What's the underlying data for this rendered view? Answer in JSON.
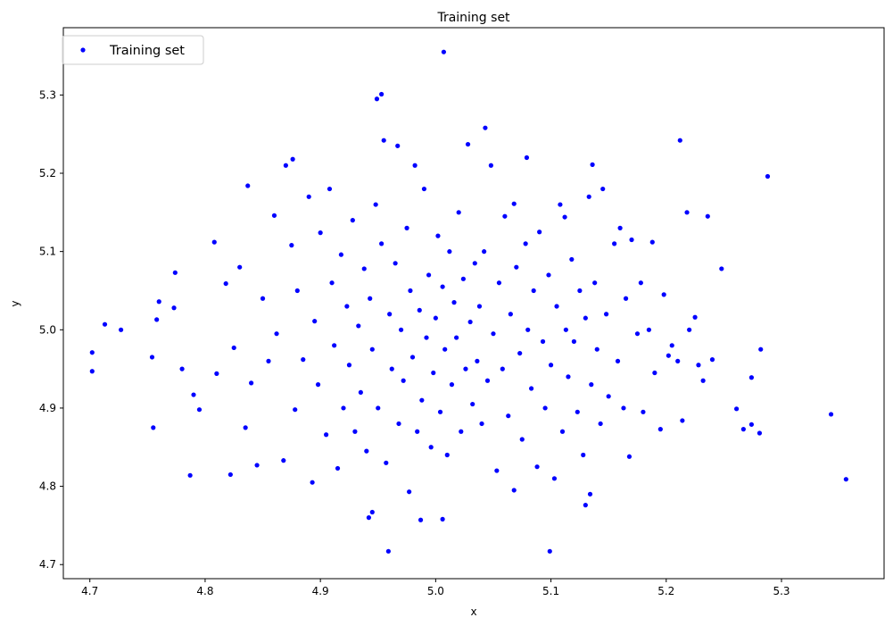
{
  "chart_data": {
    "type": "scatter",
    "title": "Training set",
    "xlabel": "x",
    "ylabel": "y",
    "xlim": [
      4.677,
      5.389
    ],
    "ylim": [
      4.682,
      5.386
    ],
    "xticks": [
      "4.7",
      "4.8",
      "4.9",
      "5.0",
      "5.1",
      "5.2",
      "5.3"
    ],
    "yticks": [
      "4.7",
      "4.8",
      "4.9",
      "5.0",
      "5.1",
      "5.2",
      "5.3"
    ],
    "grid": false,
    "legend": {
      "placement": "top-left",
      "entries": [
        "Training set"
      ]
    },
    "series": [
      {
        "name": "Training set",
        "color": "#0000ff",
        "points": [
          [
            4.702,
            4.971
          ],
          [
            4.702,
            4.947
          ],
          [
            4.713,
            5.007
          ],
          [
            4.727,
            5.0
          ],
          [
            4.754,
            4.965
          ],
          [
            4.755,
            4.875
          ],
          [
            4.758,
            5.013
          ],
          [
            4.76,
            5.036
          ],
          [
            4.774,
            5.073
          ],
          [
            4.773,
            5.028
          ],
          [
            4.787,
            4.814
          ],
          [
            4.822,
            4.815
          ],
          [
            4.808,
            5.112
          ],
          [
            4.837,
            5.184
          ],
          [
            4.876,
            5.218
          ],
          [
            4.949,
            5.295
          ],
          [
            4.953,
            5.301
          ],
          [
            5.007,
            5.355
          ],
          [
            5.043,
            5.258
          ],
          [
            4.959,
            4.717
          ],
          [
            4.945,
            4.767
          ],
          [
            4.942,
            4.76
          ],
          [
            4.987,
            4.757
          ],
          [
            5.006,
            4.758
          ],
          [
            5.099,
            4.717
          ],
          [
            5.13,
            4.776
          ],
          [
            5.134,
            4.79
          ],
          [
            5.356,
            4.809
          ],
          [
            5.343,
            4.892
          ],
          [
            5.288,
            5.196
          ],
          [
            5.212,
            5.242
          ],
          [
            5.248,
            5.078
          ],
          [
            5.261,
            4.899
          ],
          [
            5.282,
            4.975
          ],
          [
            5.281,
            4.868
          ],
          [
            5.267,
            4.873
          ],
          [
            5.274,
            4.879
          ],
          [
            5.274,
            4.939
          ],
          [
            5.236,
            5.145
          ],
          [
            5.218,
            5.15
          ],
          [
            5.225,
            5.016
          ],
          [
            5.202,
            4.967
          ],
          [
            5.214,
            4.884
          ],
          [
            5.068,
            5.161
          ],
          [
            5.079,
            5.22
          ],
          [
            5.136,
            5.211
          ],
          [
            5.112,
            5.144
          ],
          [
            4.78,
            4.95
          ],
          [
            4.79,
            4.917
          ],
          [
            4.795,
            4.898
          ],
          [
            4.81,
            4.944
          ],
          [
            4.818,
            5.059
          ],
          [
            4.825,
            4.977
          ],
          [
            4.83,
            5.08
          ],
          [
            4.835,
            4.875
          ],
          [
            4.84,
            4.932
          ],
          [
            4.845,
            4.827
          ],
          [
            4.85,
            5.04
          ],
          [
            4.855,
            4.96
          ],
          [
            4.86,
            5.146
          ],
          [
            4.862,
            4.995
          ],
          [
            4.868,
            4.833
          ],
          [
            4.87,
            5.21
          ],
          [
            4.875,
            5.108
          ],
          [
            4.878,
            4.898
          ],
          [
            4.88,
            5.05
          ],
          [
            4.885,
            4.962
          ],
          [
            4.89,
            5.17
          ],
          [
            4.893,
            4.805
          ],
          [
            4.895,
            5.011
          ],
          [
            4.898,
            4.93
          ],
          [
            4.9,
            5.124
          ],
          [
            4.905,
            4.866
          ],
          [
            4.908,
            5.18
          ],
          [
            4.91,
            5.06
          ],
          [
            4.912,
            4.98
          ],
          [
            4.915,
            4.823
          ],
          [
            4.918,
            5.096
          ],
          [
            4.92,
            4.9
          ],
          [
            4.923,
            5.03
          ],
          [
            4.925,
            4.955
          ],
          [
            4.928,
            5.14
          ],
          [
            4.93,
            4.87
          ],
          [
            4.933,
            5.005
          ],
          [
            4.935,
            4.92
          ],
          [
            4.938,
            5.078
          ],
          [
            4.94,
            4.845
          ],
          [
            4.943,
            5.04
          ],
          [
            4.945,
            4.975
          ],
          [
            4.948,
            5.16
          ],
          [
            4.95,
            4.9
          ],
          [
            4.953,
            5.11
          ],
          [
            4.955,
            5.242
          ],
          [
            4.957,
            4.83
          ],
          [
            4.96,
            5.02
          ],
          [
            4.962,
            4.95
          ],
          [
            4.965,
            5.085
          ],
          [
            4.967,
            5.235
          ],
          [
            4.968,
            4.88
          ],
          [
            4.97,
            5.0
          ],
          [
            4.972,
            4.935
          ],
          [
            4.975,
            5.13
          ],
          [
            4.977,
            4.793
          ],
          [
            4.978,
            5.05
          ],
          [
            4.98,
            4.965
          ],
          [
            4.982,
            5.21
          ],
          [
            4.984,
            4.87
          ],
          [
            4.986,
            5.025
          ],
          [
            4.988,
            4.91
          ],
          [
            4.99,
            5.18
          ],
          [
            4.992,
            4.99
          ],
          [
            4.994,
            5.07
          ],
          [
            4.996,
            4.85
          ],
          [
            4.998,
            4.945
          ],
          [
            5.0,
            5.015
          ],
          [
            5.002,
            5.12
          ],
          [
            5.004,
            4.895
          ],
          [
            5.006,
            5.055
          ],
          [
            5.008,
            4.975
          ],
          [
            5.01,
            4.84
          ],
          [
            5.012,
            5.1
          ],
          [
            5.014,
            4.93
          ],
          [
            5.016,
            5.035
          ],
          [
            5.018,
            4.99
          ],
          [
            5.02,
            5.15
          ],
          [
            5.022,
            4.87
          ],
          [
            5.024,
            5.065
          ],
          [
            5.026,
            4.95
          ],
          [
            5.028,
            5.237
          ],
          [
            5.03,
            5.01
          ],
          [
            5.032,
            4.905
          ],
          [
            5.034,
            5.085
          ],
          [
            5.036,
            4.96
          ],
          [
            5.038,
            5.03
          ],
          [
            5.04,
            4.88
          ],
          [
            5.042,
            5.1
          ],
          [
            5.045,
            4.935
          ],
          [
            5.048,
            5.21
          ],
          [
            5.05,
            4.995
          ],
          [
            5.053,
            4.82
          ],
          [
            5.055,
            5.06
          ],
          [
            5.058,
            4.95
          ],
          [
            5.06,
            5.145
          ],
          [
            5.063,
            4.89
          ],
          [
            5.065,
            5.02
          ],
          [
            5.068,
            4.795
          ],
          [
            5.07,
            5.08
          ],
          [
            5.073,
            4.97
          ],
          [
            5.075,
            4.86
          ],
          [
            5.078,
            5.11
          ],
          [
            5.08,
            5.0
          ],
          [
            5.083,
            4.925
          ],
          [
            5.085,
            5.05
          ],
          [
            5.088,
            4.825
          ],
          [
            5.09,
            5.125
          ],
          [
            5.093,
            4.985
          ],
          [
            5.095,
            4.9
          ],
          [
            5.098,
            5.07
          ],
          [
            5.1,
            4.955
          ],
          [
            5.103,
            4.81
          ],
          [
            5.105,
            5.03
          ],
          [
            5.108,
            5.16
          ],
          [
            5.11,
            4.87
          ],
          [
            5.113,
            5.0
          ],
          [
            5.115,
            4.94
          ],
          [
            5.118,
            5.09
          ],
          [
            5.12,
            4.985
          ],
          [
            5.123,
            4.895
          ],
          [
            5.125,
            5.05
          ],
          [
            5.128,
            4.84
          ],
          [
            5.13,
            5.015
          ],
          [
            5.133,
            5.17
          ],
          [
            5.135,
            4.93
          ],
          [
            5.138,
            5.06
          ],
          [
            5.14,
            4.975
          ],
          [
            5.143,
            4.88
          ],
          [
            5.145,
            5.18
          ],
          [
            5.148,
            5.02
          ],
          [
            5.15,
            4.915
          ],
          [
            5.155,
            5.11
          ],
          [
            5.158,
            4.96
          ],
          [
            5.16,
            5.13
          ],
          [
            5.163,
            4.9
          ],
          [
            5.165,
            5.04
          ],
          [
            5.168,
            4.838
          ],
          [
            5.17,
            5.115
          ],
          [
            5.175,
            4.995
          ],
          [
            5.178,
            5.06
          ],
          [
            5.18,
            4.895
          ],
          [
            5.185,
            5.0
          ],
          [
            5.188,
            5.112
          ],
          [
            5.19,
            4.945
          ],
          [
            5.195,
            4.873
          ],
          [
            5.198,
            5.045
          ],
          [
            5.205,
            4.98
          ],
          [
            5.21,
            4.96
          ],
          [
            5.22,
            5.0
          ],
          [
            5.228,
            4.955
          ],
          [
            5.232,
            4.935
          ],
          [
            5.24,
            4.962
          ]
        ]
      }
    ]
  }
}
